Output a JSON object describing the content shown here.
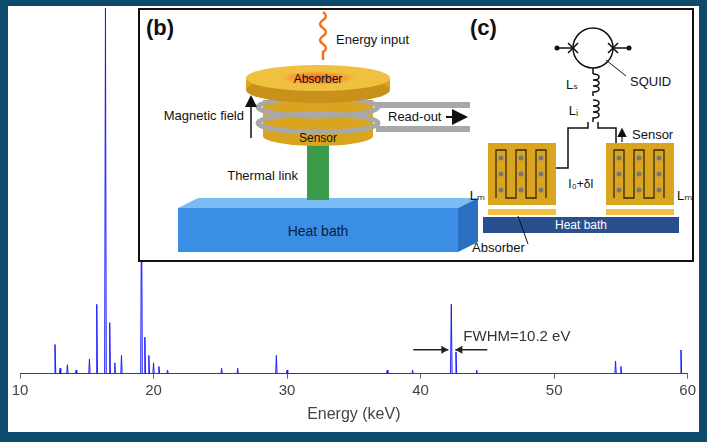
{
  "chart_data": {
    "type": "line",
    "color": "#1a1aff",
    "xlabel": "Energy (keV)",
    "x": [
      10,
      12.56,
      12.62,
      12.68,
      12.95,
      13.0,
      13.05,
      13.5,
      13.55,
      13.6,
      14.15,
      14.2,
      14.25,
      15.15,
      15.2,
      15.25,
      15.7,
      15.75,
      15.8,
      16.34,
      16.4,
      16.46,
      16.67,
      16.72,
      16.77,
      17.05,
      17.1,
      17.15,
      17.55,
      17.6,
      17.65,
      19.04,
      19.1,
      19.16,
      19.3,
      19.35,
      19.4,
      19.6,
      19.65,
      19.7,
      19.95,
      20.0,
      20.05,
      20.35,
      20.4,
      20.45,
      21.0,
      21.05,
      21.1,
      25.05,
      25.1,
      25.15,
      26.25,
      26.3,
      26.35,
      29.15,
      29.2,
      29.25,
      29.95,
      30.0,
      30.05,
      37.45,
      37.5,
      37.55,
      39.35,
      39.4,
      39.45,
      42.24,
      42.3,
      42.36,
      42.6,
      42.65,
      42.7,
      44.15,
      44.2,
      44.25,
      54.55,
      54.6,
      54.65,
      54.95,
      55.0,
      55.05,
      59.45,
      59.5,
      59.55,
      60
    ],
    "values": [
      0,
      0,
      8,
      0,
      0,
      1.5,
      0,
      0,
      2.5,
      0,
      0,
      1,
      0,
      0,
      4,
      0,
      0,
      19,
      0,
      0,
      100,
      0,
      0,
      14,
      0,
      0,
      3,
      0,
      0,
      5,
      0,
      0,
      50,
      0,
      0,
      10,
      0,
      0,
      5,
      0,
      0,
      3,
      0,
      0,
      2,
      0,
      0,
      1,
      0,
      0,
      1.5,
      0,
      0,
      1.5,
      0,
      0,
      5,
      0,
      0,
      1,
      0,
      0,
      1,
      0,
      0,
      1,
      0,
      0,
      19,
      0,
      0,
      6,
      0,
      0,
      1,
      0,
      0,
      3.5,
      0,
      0,
      2,
      0,
      0,
      6.5,
      0,
      0
    ],
    "xlim": [
      10,
      60
    ],
    "xticks": [
      10,
      20,
      30,
      40,
      50,
      60
    ],
    "ylim": [
      0,
      100
    ],
    "grid": false,
    "tick_labels": "x",
    "annotations": [
      {
        "text": "FWHM=10.2 eV",
        "x": 42.3
      }
    ]
  },
  "inset": {
    "panels": [
      {
        "letter": "(b)",
        "labels": {
          "energy_input": "Energy input",
          "absorber": "Absorber",
          "magnetic_field": "Magnetic field",
          "read_out": "Read-out",
          "sensor": "Sensor",
          "thermal_link": "Thermal link",
          "heat_bath": "Heat bath"
        }
      },
      {
        "letter": "(c)",
        "labels": {
          "squid": "SQUID",
          "ls": "Lₛ",
          "li": "Lᵢ",
          "sensor": "Sensor",
          "lm_left": "Lₘ",
          "lm_right": "Lₘ",
          "current": "I₀+δI",
          "absorber": "Absorber",
          "heat_bath": "Heat bath"
        }
      }
    ]
  }
}
